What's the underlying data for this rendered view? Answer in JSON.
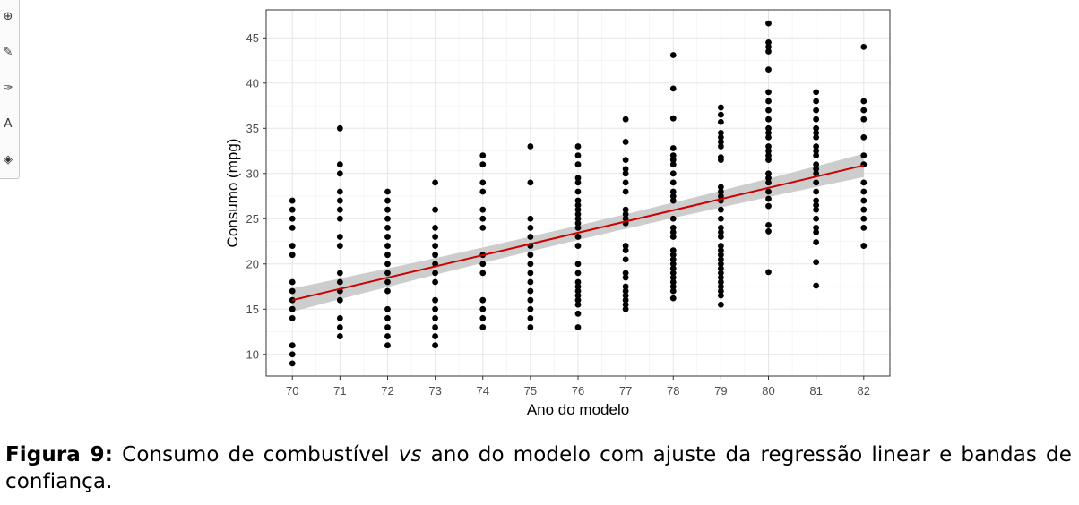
{
  "toolbar": {
    "items": [
      {
        "name": "comment-add-icon",
        "glyph": "⊕"
      },
      {
        "name": "pen-icon",
        "glyph": "✎"
      },
      {
        "name": "freehand-icon",
        "glyph": "✑"
      },
      {
        "name": "text-box-icon",
        "glyph": "A"
      },
      {
        "name": "highlight-icon",
        "glyph": "◈"
      }
    ]
  },
  "chart_data": {
    "type": "scatter",
    "xlabel": "Ano do modelo",
    "ylabel": "Consumo (mpg)",
    "xlim": [
      69.45,
      82.55
    ],
    "ylim": [
      7.6,
      48.1
    ],
    "xticks": [
      70,
      71,
      72,
      73,
      74,
      75,
      76,
      77,
      78,
      79,
      80,
      81,
      82
    ],
    "yticks": [
      10,
      15,
      20,
      25,
      30,
      35,
      40,
      45
    ],
    "grid": true,
    "point_color": "#000000",
    "fit": {
      "method": "linear regression",
      "color": "#cc0000",
      "band_color": "#c8c8c8",
      "x": [
        70,
        82
      ],
      "y": [
        16.0,
        30.9
      ],
      "band_halfwidth": [
        1.3,
        0.8,
        1.3
      ]
    },
    "points": [
      {
        "x": 70,
        "y": [
          9,
          10,
          11,
          14,
          15,
          15,
          16,
          17,
          18,
          21,
          22,
          24,
          25,
          26,
          27
        ]
      },
      {
        "x": 71,
        "y": [
          12,
          13,
          14,
          16,
          17,
          18,
          19,
          22,
          23,
          25,
          26,
          27,
          28,
          30,
          31,
          35
        ]
      },
      {
        "x": 72,
        "y": [
          11,
          12,
          13,
          14,
          15,
          17,
          18,
          19,
          20,
          21,
          22,
          23,
          24,
          25,
          26,
          27,
          28
        ]
      },
      {
        "x": 73,
        "y": [
          11,
          12,
          13,
          14,
          15,
          16,
          18,
          19,
          20,
          21,
          22,
          23,
          24,
          26,
          29
        ]
      },
      {
        "x": 74,
        "y": [
          13,
          14,
          15,
          16,
          19,
          20,
          21,
          24,
          25,
          26,
          28,
          29,
          31,
          32
        ]
      },
      {
        "x": 75,
        "y": [
          13,
          14,
          15,
          16,
          17,
          18,
          19,
          20,
          21,
          22,
          23,
          24,
          25,
          29,
          33
        ]
      },
      {
        "x": 76,
        "y": [
          13,
          14.5,
          15.5,
          16,
          16.5,
          17,
          17.5,
          18,
          19,
          20,
          22,
          23,
          24,
          24.5,
          25,
          25.5,
          26,
          26.5,
          27,
          28,
          29,
          29.5,
          31,
          32,
          33
        ]
      },
      {
        "x": 77,
        "y": [
          15,
          15.5,
          16,
          16.5,
          17,
          17.5,
          18.5,
          19,
          20.5,
          21.5,
          22,
          24.5,
          25,
          25.5,
          26,
          28,
          29,
          30,
          30.5,
          31.5,
          33.5,
          36
        ]
      },
      {
        "x": 78,
        "y": [
          16.2,
          17,
          17.5,
          18,
          18.5,
          19,
          19.5,
          20,
          20.5,
          21,
          21.5,
          23,
          23.5,
          24,
          25,
          27,
          27.5,
          28,
          29,
          30,
          31,
          31.5,
          32,
          32.8,
          36.1,
          39.4,
          43.1
        ]
      },
      {
        "x": 79,
        "y": [
          15.5,
          16.5,
          17,
          17.5,
          18,
          18.5,
          19,
          19.5,
          20,
          20.5,
          21,
          21.5,
          22,
          23,
          23.5,
          24,
          25,
          26,
          27,
          27.5,
          28,
          28.5,
          31.5,
          31.8,
          33,
          33.5,
          34,
          34.5,
          35.7,
          36.5,
          37.3
        ]
      },
      {
        "x": 80,
        "y": [
          19.1,
          23.6,
          24.3,
          26.4,
          27.2,
          28,
          29,
          29.5,
          30,
          31.5,
          32,
          32.5,
          33,
          34,
          34.5,
          35,
          36,
          37,
          38,
          39,
          41.5,
          43.5,
          44,
          44.5,
          46.6
        ]
      },
      {
        "x": 81,
        "y": [
          17.6,
          20.2,
          22.4,
          23.5,
          24,
          25,
          26,
          26.5,
          27,
          28,
          29,
          30,
          30.5,
          31,
          32,
          32.5,
          33,
          34,
          34.5,
          35,
          36,
          37,
          38,
          39
        ]
      },
      {
        "x": 82,
        "y": [
          22,
          24,
          25,
          26,
          27,
          28,
          29,
          31,
          32,
          34,
          36,
          37,
          38,
          44
        ]
      }
    ]
  },
  "caption": {
    "label": "Figura 9:",
    "text_before_italic": " Consumo de combustível ",
    "italic": "vs",
    "text_after_italic": " ano do modelo com ajuste da regressão linear e bandas de confiança."
  }
}
